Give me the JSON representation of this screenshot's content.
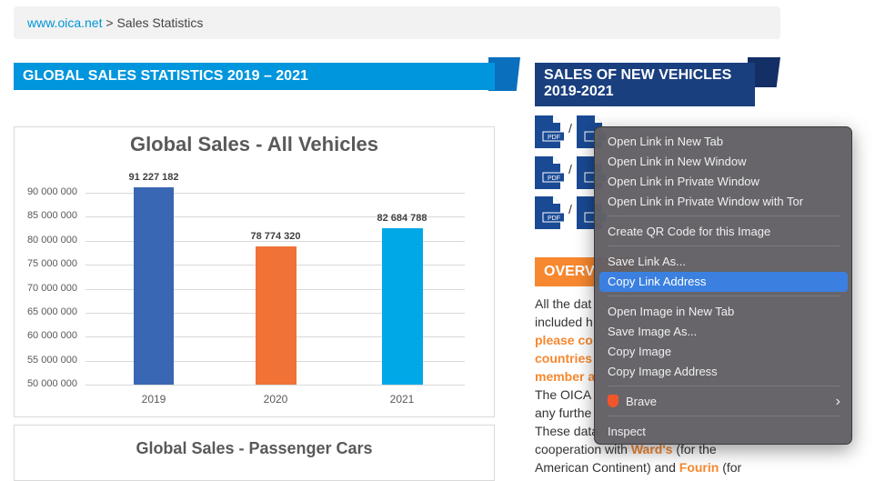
{
  "breadcrumb": {
    "link": "www.oica.net",
    "separator": " > ",
    "current": "Sales Statistics"
  },
  "left_banner": "GLOBAL SALES STATISTICS 2019 – 2021",
  "right_banner": {
    "line1": "SALES OF NEW VEHICLES",
    "line2": "2019-2021"
  },
  "file_icons": {
    "pdf": "PDF",
    "xls": "X",
    "slash": "/"
  },
  "overview": {
    "heading": "OVERV",
    "lines": [
      "All the dat",
      "included h",
      "please co",
      "countries",
      "member a",
      "The OICA",
      "any furthe",
      "These data"
    ],
    "line9": {
      "a": "cooperation with ",
      "b": "Ward's",
      "c": " (for the"
    },
    "line10": {
      "a": "American Continent) and ",
      "b": "Fourin",
      "c": " (for"
    }
  },
  "chart_data": [
    {
      "type": "bar",
      "title": "Global Sales - All Vehicles",
      "categories": [
        "2019",
        "2020",
        "2021"
      ],
      "values": [
        91227182,
        78774320,
        82684788
      ],
      "value_labels": [
        "91 227 182",
        "78 774 320",
        "82 684 788"
      ],
      "colors": [
        "#3a67b4",
        "#f07236",
        "#00a8e8"
      ],
      "ylim": [
        50000000,
        90000000
      ],
      "yticks": [
        "90 000 000",
        "85 000 000",
        "80 000 000",
        "75 000 000",
        "70 000 000",
        "65 000 000",
        "60 000 000",
        "55 000 000",
        "50 000 000"
      ],
      "grid": true
    },
    {
      "type": "bar",
      "title": "Global Sales - Passenger Cars"
    }
  ],
  "context_menu": {
    "items": [
      "Open Link in New Tab",
      "Open Link in New Window",
      "Open Link in Private Window",
      "Open Link in Private Window with Tor",
      "Create QR Code for this Image",
      "Save Link As...",
      "Copy Link Address",
      "Open Image in New Tab",
      "Save Image As...",
      "Copy Image",
      "Copy Image Address",
      "Brave",
      "Inspect"
    ],
    "highlighted": "Copy Link Address",
    "submenu_arrow": "›",
    "brave_color": "#f1562b"
  }
}
